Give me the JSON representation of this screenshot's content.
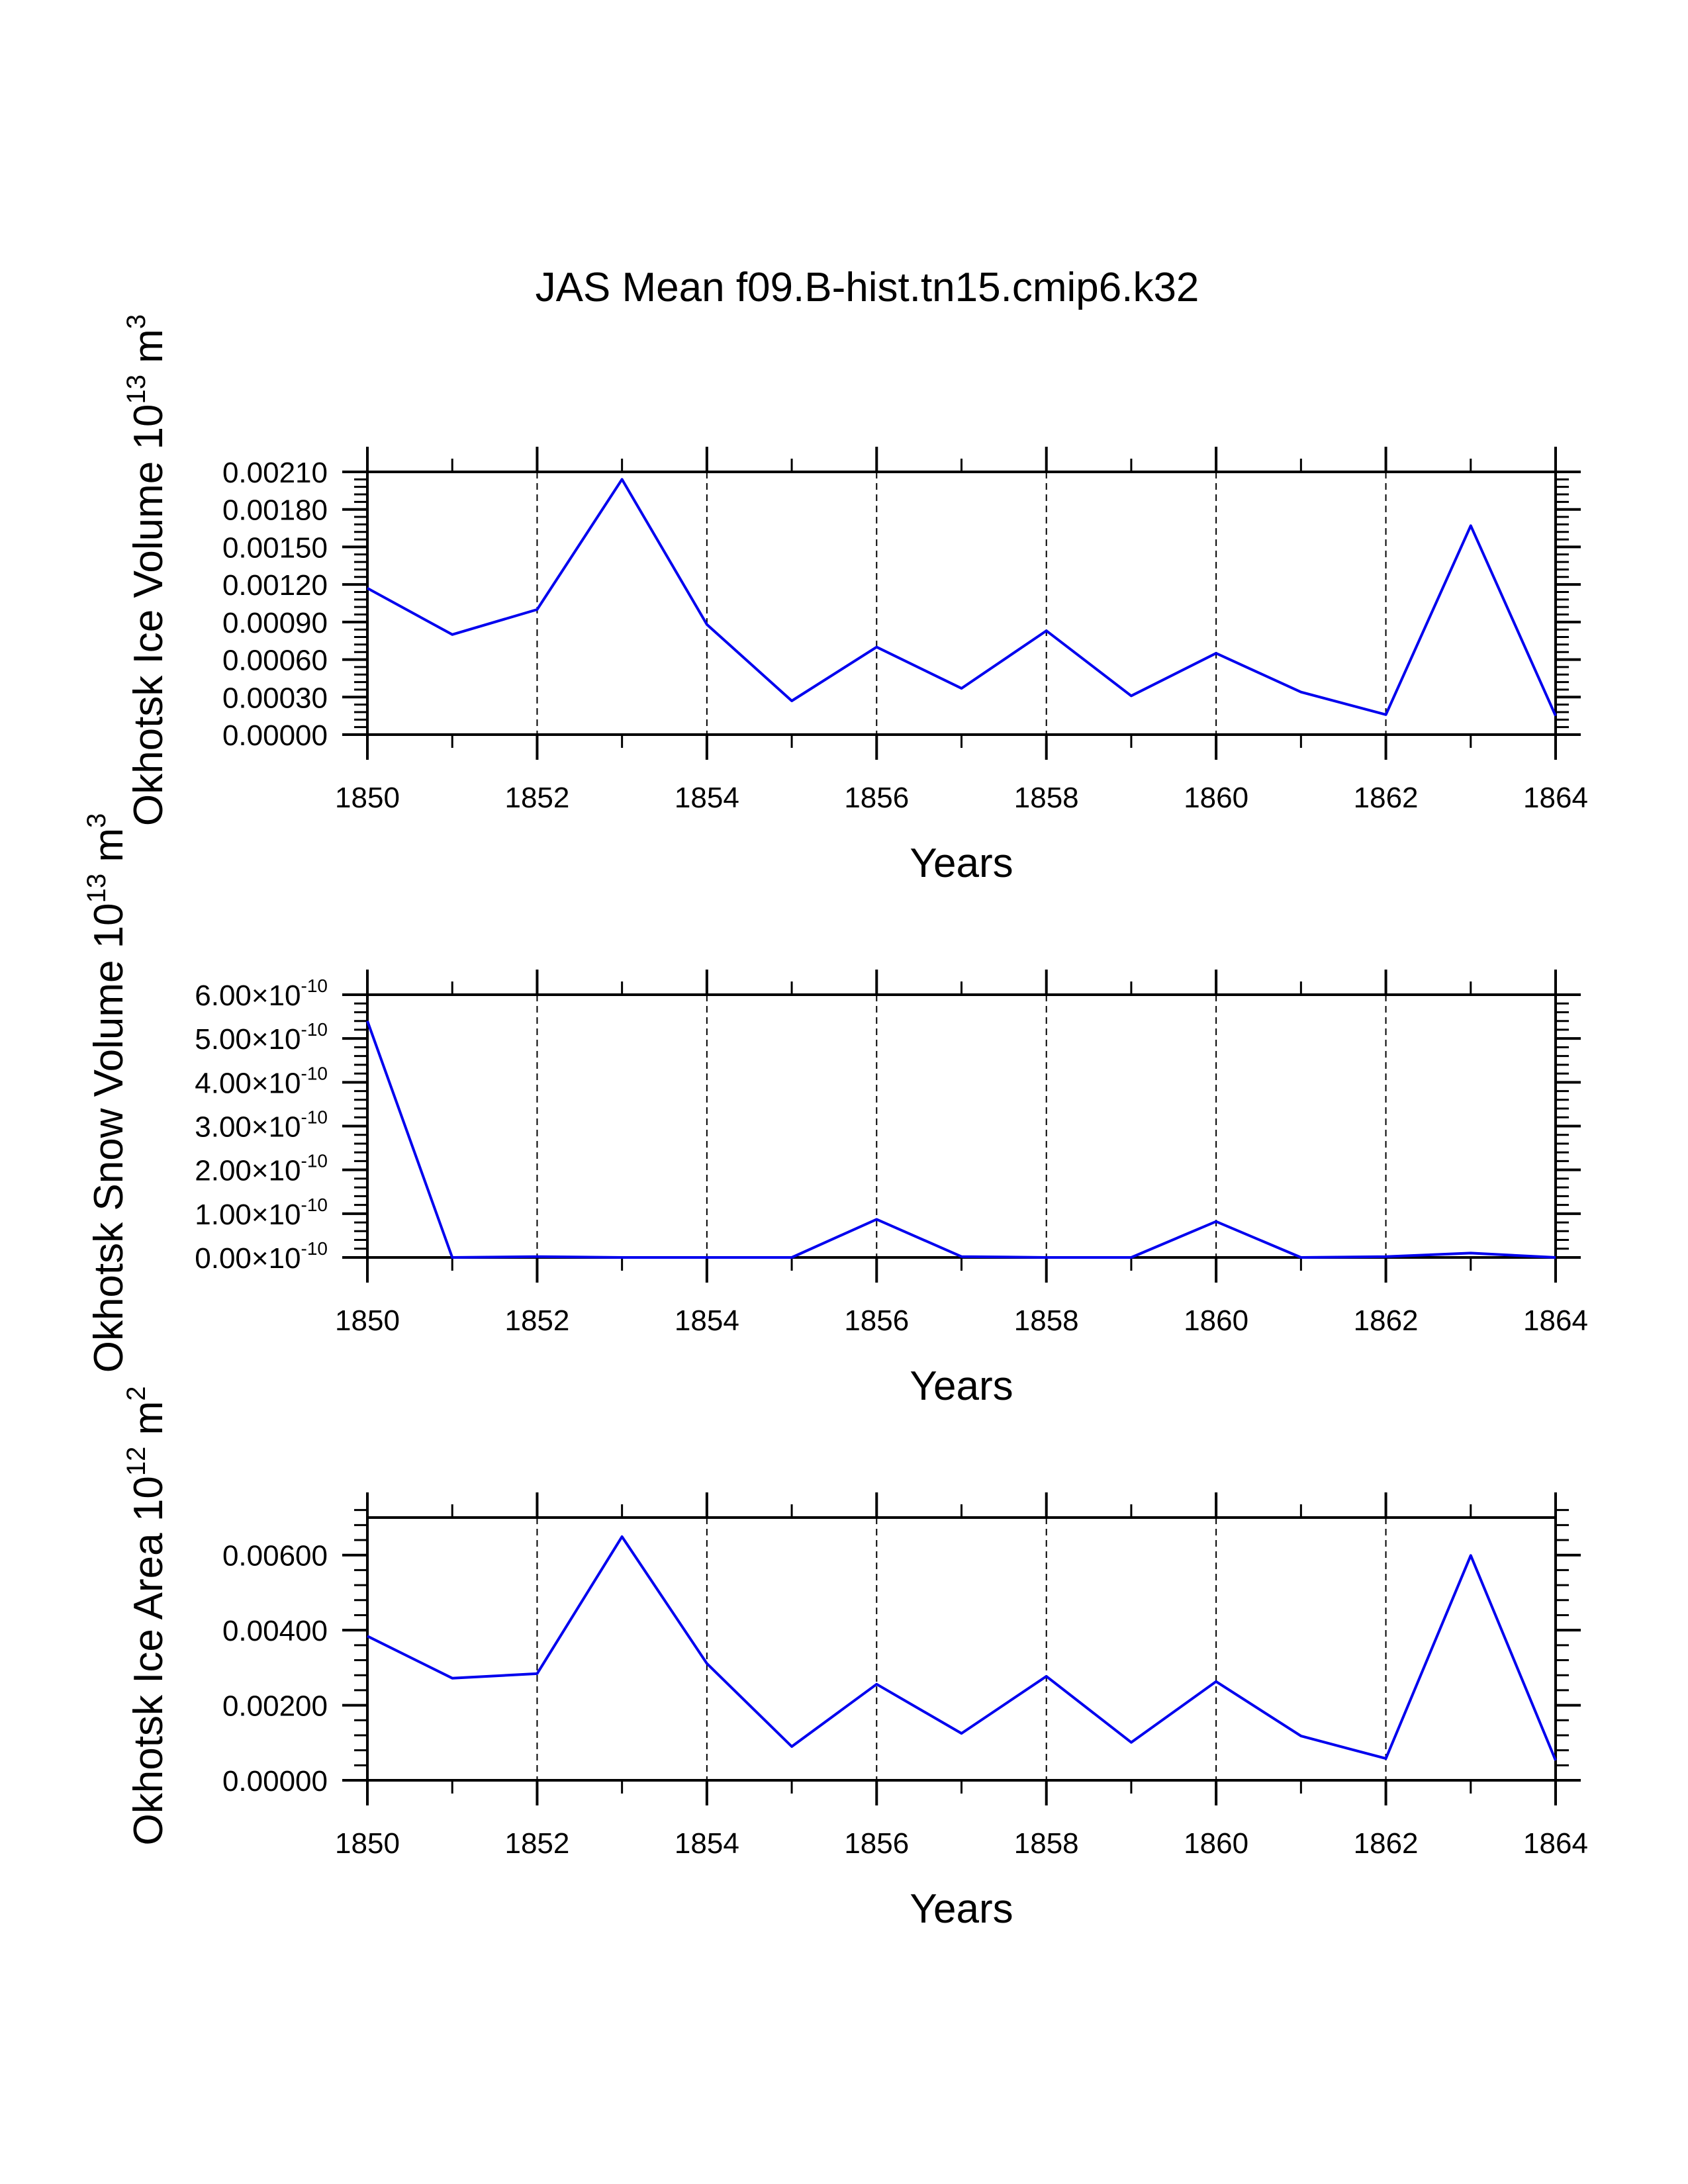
{
  "title": "JAS Mean f09.B-hist.tn15.cmip6.k32",
  "chart_data": [
    {
      "type": "line",
      "title": "JAS Mean f09.B-hist.tn15.cmip6.k32",
      "ylabel": "Okhotsk Ice Volume 10",
      "ylabel_sup": "13",
      "ylabel_unit": " m",
      "ylabel_unit_sup": "3",
      "xlabel": "Years",
      "xlim": [
        1850,
        1864
      ],
      "ylim": [
        0,
        0.0021
      ],
      "xtick_labels": [
        "1850",
        "1852",
        "1854",
        "1856",
        "1858",
        "1860",
        "1862",
        "1864"
      ],
      "ytick_labels": [
        "0.00000",
        "0.00030",
        "0.00060",
        "0.00090",
        "0.00120",
        "0.00150",
        "0.00180",
        "0.00210"
      ],
      "grid": "vertical dashed at major x ticks",
      "line_color": "#0000ee",
      "series": [
        {
          "name": "Ice Volume",
          "x": [
            1850,
            1851,
            1852,
            1853,
            1854,
            1855,
            1856,
            1857,
            1858,
            1859,
            1860,
            1861,
            1862,
            1863,
            1864
          ],
          "values": [
            0.00117,
            0.0008,
            0.001,
            0.00204,
            0.00088,
            0.00027,
            0.0007,
            0.00037,
            0.00083,
            0.00031,
            0.00065,
            0.00034,
            0.00016,
            0.00167,
            0.00015
          ]
        }
      ]
    },
    {
      "type": "line",
      "ylabel": "Okhotsk Snow Volume 10",
      "ylabel_sup": "13",
      "ylabel_unit": " m",
      "ylabel_unit_sup": "3",
      "xlabel": "Years",
      "xlim": [
        1850,
        1864
      ],
      "ylim": [
        0,
        6e-10
      ],
      "xtick_labels": [
        "1850",
        "1852",
        "1854",
        "1856",
        "1858",
        "1860",
        "1862",
        "1864"
      ],
      "ytick_mantissas": [
        "0.00",
        "1.00",
        "2.00",
        "3.00",
        "4.00",
        "5.00",
        "6.00"
      ],
      "ytick_times": "×10",
      "ytick_exponent": "-10",
      "grid": "vertical dashed at major x ticks",
      "line_color": "#0000ee",
      "series": [
        {
          "name": "Snow Volume",
          "x": [
            1850,
            1851,
            1852,
            1853,
            1854,
            1855,
            1856,
            1857,
            1858,
            1859,
            1860,
            1861,
            1862,
            1863,
            1864
          ],
          "values": [
            5.4e-10,
            0,
            2e-12,
            0,
            0,
            0,
            8.7e-11,
            2e-12,
            0,
            0,
            8.2e-11,
            0,
            2e-12,
            1e-11,
            0
          ]
        }
      ]
    },
    {
      "type": "line",
      "ylabel": "Okhotsk Ice Area 10",
      "ylabel_sup": "12",
      "ylabel_unit": " m",
      "ylabel_unit_sup": "2",
      "xlabel": "Years",
      "xlim": [
        1850,
        1864
      ],
      "ylim": [
        0,
        0.007
      ],
      "xtick_labels": [
        "1850",
        "1852",
        "1854",
        "1856",
        "1858",
        "1860",
        "1862",
        "1864"
      ],
      "ytick_labels": [
        "0.00000",
        "0.00200",
        "0.00400",
        "0.00600"
      ],
      "ytick_values": [
        0,
        0.002,
        0.004,
        0.006
      ],
      "grid": "vertical dashed at major x ticks",
      "line_color": "#0000ee",
      "series": [
        {
          "name": "Ice Area",
          "x": [
            1850,
            1851,
            1852,
            1853,
            1854,
            1855,
            1856,
            1857,
            1858,
            1859,
            1860,
            1861,
            1862,
            1863,
            1864
          ],
          "values": [
            0.00384,
            0.00272,
            0.00284,
            0.00649,
            0.00311,
            0.0009,
            0.00256,
            0.00125,
            0.00277,
            0.00101,
            0.00263,
            0.00118,
            0.00058,
            0.00599,
            0.00053
          ]
        }
      ]
    }
  ]
}
